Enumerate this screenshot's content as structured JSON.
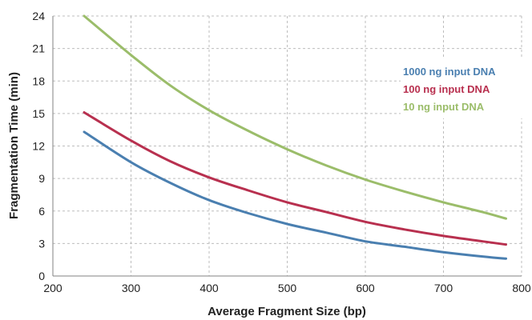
{
  "chart_data": {
    "type": "line",
    "title": "",
    "xlabel": "Average Fragment Size (bp)",
    "ylabel": "Fragmentation Time (min)",
    "xlim": [
      200,
      800
    ],
    "ylim": [
      0,
      24
    ],
    "x_ticks": [
      "200",
      "300",
      "400",
      "500",
      "600",
      "700",
      "800"
    ],
    "y_ticks": [
      "0",
      "3",
      "6",
      "9",
      "12",
      "15",
      "18",
      "21",
      "24"
    ],
    "grid": true,
    "legend_position": "right",
    "series": [
      {
        "name": "1000 ng input DNA",
        "color": "#4a7fb0",
        "points": [
          [
            240,
            13.3
          ],
          [
            300,
            10.5
          ],
          [
            350,
            8.6
          ],
          [
            400,
            7.0
          ],
          [
            450,
            5.8
          ],
          [
            500,
            4.8
          ],
          [
            550,
            4.0
          ],
          [
            600,
            3.2
          ],
          [
            650,
            2.7
          ],
          [
            700,
            2.2
          ],
          [
            750,
            1.8
          ],
          [
            780,
            1.6
          ]
        ]
      },
      {
        "name": "100 ng input DNA",
        "color": "#b8304f",
        "points": [
          [
            240,
            15.1
          ],
          [
            300,
            12.5
          ],
          [
            350,
            10.6
          ],
          [
            400,
            9.1
          ],
          [
            450,
            7.9
          ],
          [
            500,
            6.8
          ],
          [
            550,
            5.9
          ],
          [
            600,
            5.0
          ],
          [
            650,
            4.3
          ],
          [
            700,
            3.7
          ],
          [
            750,
            3.2
          ],
          [
            780,
            2.9
          ]
        ]
      },
      {
        "name": "10 ng input DNA",
        "color": "#9bbd6a",
        "points": [
          [
            240,
            24.0
          ],
          [
            300,
            20.4
          ],
          [
            350,
            17.6
          ],
          [
            400,
            15.3
          ],
          [
            450,
            13.4
          ],
          [
            500,
            11.7
          ],
          [
            550,
            10.2
          ],
          [
            600,
            8.9
          ],
          [
            650,
            7.8
          ],
          [
            700,
            6.8
          ],
          [
            750,
            5.9
          ],
          [
            780,
            5.3
          ]
        ]
      }
    ]
  }
}
